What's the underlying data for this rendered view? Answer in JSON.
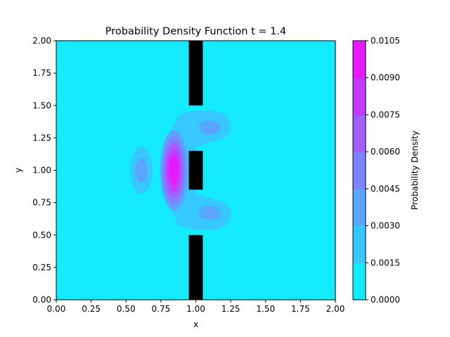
{
  "chart_data": {
    "type": "contourf",
    "title": "Probability Density Function t = 1.4",
    "xlabel": "x",
    "ylabel": "y",
    "xlim": [
      0.0,
      2.0
    ],
    "ylim": [
      0.0,
      2.0
    ],
    "x_ticks": [
      "0.00",
      "0.25",
      "0.50",
      "0.75",
      "1.00",
      "1.25",
      "1.50",
      "1.75",
      "2.00"
    ],
    "y_ticks": [
      "0.00",
      "0.25",
      "0.50",
      "0.75",
      "1.00",
      "1.25",
      "1.50",
      "1.75",
      "2.00"
    ],
    "colorbar": {
      "label": "Probability Density",
      "levels": [
        0.0,
        0.0015,
        0.003,
        0.0045,
        0.006,
        0.0075,
        0.009,
        0.0105
      ],
      "tick_labels": [
        "0.0000",
        "0.0015",
        "0.0030",
        "0.0045",
        "0.0060",
        "0.0075",
        "0.0090",
        "0.0105"
      ],
      "colors": [
        "#14ebff",
        "#37c8ff",
        "#5aa5ff",
        "#7d82ff",
        "#a05fff",
        "#c33cff",
        "#e619ff"
      ]
    },
    "barriers": [
      {
        "x0": 0.95,
        "x1": 1.05,
        "y0": 0.0,
        "y1": 0.5
      },
      {
        "x0": 0.95,
        "x1": 1.05,
        "y0": 0.85,
        "y1": 1.15
      },
      {
        "x0": 0.95,
        "x1": 1.05,
        "y0": 1.5,
        "y1": 2.0
      }
    ],
    "features": [
      {
        "name": "main-peak",
        "x": 0.84,
        "y": 1.0,
        "peak": 0.0105
      },
      {
        "name": "left-blob",
        "x": 0.61,
        "y": 1.0,
        "peak": 0.003
      },
      {
        "name": "upper-right-lobe",
        "x": 1.1,
        "y": 1.33,
        "peak": 0.0026
      },
      {
        "name": "lower-right-lobe",
        "x": 1.1,
        "y": 0.67,
        "peak": 0.0026
      }
    ]
  }
}
